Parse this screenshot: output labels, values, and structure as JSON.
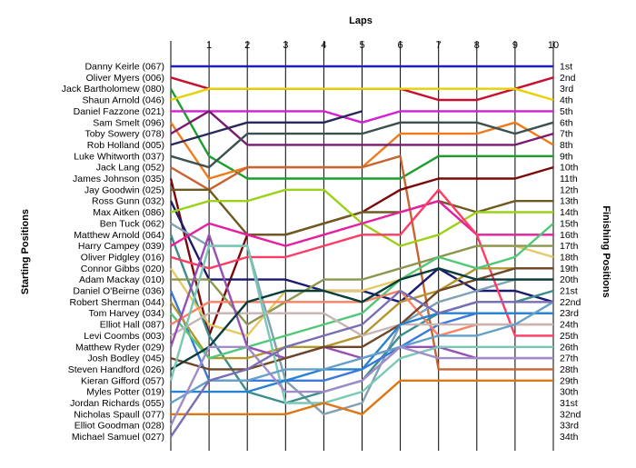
{
  "chart_data": {
    "type": "line",
    "title": "",
    "xlabel": "Laps",
    "ylabel_left": "Starting Positions",
    "ylabel_right": "Finishing Positions",
    "laps": [
      1,
      2,
      3,
      4,
      5,
      6,
      7,
      8,
      9,
      10
    ],
    "grid": "vertical",
    "finishing_positions": [
      "1st",
      "2nd",
      "3rd",
      "4th",
      "5th",
      "6th",
      "7th",
      "8th",
      "9th",
      "10th",
      "11th",
      "12th",
      "13th",
      "14th",
      "15th",
      "16th",
      "17th",
      "18th",
      "19th",
      "20th",
      "21st",
      "22nd",
      "23rd",
      "24th",
      "25th",
      "26th",
      "27th",
      "28th",
      "29th",
      "30th",
      "31st",
      "32nd",
      "33rd",
      "34th"
    ],
    "series": [
      {
        "name": "Danny Keirle (067)",
        "color": "#1f1fb4",
        "positions": [
          1,
          1,
          1,
          1,
          1,
          1,
          1,
          1,
          1,
          1,
          1
        ]
      },
      {
        "name": "Oliver Myers (006)",
        "color": "#c8102e",
        "positions": [
          2,
          3,
          3,
          3,
          3,
          3,
          3,
          4,
          4,
          3,
          2
        ]
      },
      {
        "name": "Jack Bartholomew (080)",
        "color": "#1a9e2c",
        "positions": [
          3,
          9,
          11,
          11,
          11,
          11,
          11,
          9,
          9,
          9,
          9
        ]
      },
      {
        "name": "Shaun Arnold (046)",
        "color": "#e6d200",
        "positions": [
          4,
          3,
          3,
          3,
          3,
          3,
          3,
          3,
          3,
          3,
          4
        ]
      },
      {
        "name": "Daniel Fazzone (021)",
        "color": "#d41fd4",
        "positions": [
          5,
          5,
          5,
          5,
          5,
          6,
          5,
          5,
          5,
          5,
          5
        ]
      },
      {
        "name": "Sam Smelt (096)",
        "color": "#f07a1a",
        "positions": [
          6,
          11,
          10,
          10,
          10,
          10,
          7,
          7,
          7,
          6,
          8
        ]
      },
      {
        "name": "Toby Sowery (078)",
        "color": "#7a1a6e",
        "positions": [
          7,
          5,
          8,
          8,
          8,
          8,
          8,
          8,
          8,
          8,
          7
        ]
      },
      {
        "name": "Rob Holland (005)",
        "color": "#2a2a5a",
        "positions": [
          8,
          7,
          6,
          6,
          6,
          5,
          null,
          null,
          null,
          null,
          null
        ]
      },
      {
        "name": "Luke Whitworth (037)",
        "color": "#3c5050",
        "positions": [
          9,
          10,
          7,
          7,
          7,
          7,
          6,
          6,
          6,
          7,
          6
        ]
      },
      {
        "name": "Jack Lang (052)",
        "color": "#c86432",
        "positions": [
          10,
          12,
          10,
          10,
          10,
          10,
          9,
          28,
          28,
          28,
          28
        ]
      },
      {
        "name": "James Johnson (035)",
        "color": "#7a0a0a",
        "positions": [
          11,
          25,
          16,
          16,
          15,
          14,
          12,
          11,
          11,
          11,
          10
        ]
      },
      {
        "name": "Jay Goodwin (025)",
        "color": "#6e5a20",
        "positions": [
          12,
          12,
          16,
          16,
          15,
          14,
          14,
          13,
          14,
          13,
          13
        ]
      },
      {
        "name": "Ross Gunn (032)",
        "color": "#1a1a6e",
        "positions": [
          13,
          20,
          20,
          20,
          21,
          21,
          22,
          19,
          21,
          21,
          22
        ]
      },
      {
        "name": "Max Aitken (086)",
        "color": "#9ad21a",
        "positions": [
          14,
          13,
          13,
          12,
          12,
          15,
          17,
          16,
          14,
          14,
          14
        ]
      },
      {
        "name": "Ben Tuck (062)",
        "color": "#80a0b4",
        "positions": [
          15,
          17,
          17,
          29,
          32,
          31,
          24,
          22,
          21,
          20,
          20
        ]
      },
      {
        "name": "Matthew Arnold (064)",
        "color": "#3c8c8c",
        "positions": [
          16,
          25,
          30,
          31,
          30,
          29,
          25,
          23,
          22,
          22,
          21
        ]
      },
      {
        "name": "Harry Campey (039)",
        "color": "#e61ea0",
        "positions": [
          17,
          15,
          16,
          17,
          16,
          15,
          14,
          13,
          16,
          16,
          16
        ]
      },
      {
        "name": "Oliver Pidgley (016)",
        "color": "#ff3c64",
        "positions": [
          18,
          19,
          18,
          18,
          17,
          16,
          16,
          12,
          16,
          25,
          25
        ]
      },
      {
        "name": "Connor Gibbs (020)",
        "color": "#e6c864",
        "positions": [
          19,
          24,
          25,
          21,
          21,
          21,
          20,
          18,
          17,
          17,
          18
        ]
      },
      {
        "name": "Adam Mackay (010)",
        "color": "#8c9650",
        "positions": [
          20,
          20,
          24,
          22,
          20,
          20,
          19,
          18,
          17,
          17,
          17
        ]
      },
      {
        "name": "Daniel O'Beirne (036)",
        "color": "#3c78dc",
        "positions": [
          21,
          29,
          29,
          29,
          29,
          28,
          26,
          24,
          23,
          23,
          23
        ]
      },
      {
        "name": "Robert Sherman (044)",
        "color": "#b4962d",
        "positions": [
          22,
          27,
          27,
          26,
          26,
          25,
          22,
          21,
          19,
          19,
          19
        ]
      },
      {
        "name": "Tom Harvey (034)",
        "color": "#50c878",
        "positions": [
          23,
          27,
          26,
          25,
          24,
          23,
          20,
          18,
          19,
          18,
          15
        ]
      },
      {
        "name": "Elliot Hall (087)",
        "color": "#fa8264",
        "positions": [
          24,
          22,
          22,
          22,
          22,
          22,
          21,
          25,
          24,
          24,
          24
        ]
      },
      {
        "name": "Levi Coombs (003)",
        "color": "#c8b4b4",
        "positions": [
          25,
          23,
          23,
          23,
          23,
          25,
          24,
          24,
          24,
          24,
          24
        ]
      },
      {
        "name": "Matthew Ryder (029)",
        "color": "#9650b4",
        "positions": [
          26,
          16,
          26,
          27,
          26,
          27,
          26,
          26,
          27,
          27,
          27
        ]
      },
      {
        "name": "Josh Bodley (045)",
        "color": "#6e4628",
        "positions": [
          27,
          28,
          28,
          27,
          26,
          26,
          24,
          21,
          20,
          19,
          19
        ]
      },
      {
        "name": "Steven Handford (026)",
        "color": "#0a3c3c",
        "positions": [
          28,
          26,
          22,
          21,
          21,
          22,
          20,
          19,
          20,
          20,
          20
        ]
      },
      {
        "name": "Kieran Gifford (057)",
        "color": "#78c8b4",
        "positions": [
          29,
          17,
          17,
          31,
          31,
          30,
          27,
          26,
          26,
          26,
          26
        ]
      },
      {
        "name": "Myles Potter (019)",
        "color": "#2882d2",
        "positions": [
          30,
          30,
          30,
          29,
          28,
          28,
          24,
          23,
          23,
          23,
          23
        ]
      },
      {
        "name": "Jordan Richards (055)",
        "color": "#64a0c8",
        "positions": [
          31,
          29,
          29,
          28,
          28,
          27,
          26,
          25,
          25,
          24,
          22
        ]
      },
      {
        "name": "Nicholas Spaull (077)",
        "color": "#dc7814",
        "positions": [
          32,
          32,
          32,
          32,
          31,
          32,
          29,
          29,
          29,
          29,
          29
        ]
      },
      {
        "name": "Elliot Goodman (028)",
        "color": "#a08cc8",
        "positions": [
          33,
          26,
          26,
          30,
          30,
          29,
          26,
          27,
          27,
          27,
          27
        ]
      },
      {
        "name": "Michael Samuel (027)",
        "color": "#786eb4",
        "positions": [
          34,
          29,
          28,
          26,
          25,
          24,
          21,
          23,
          22,
          22,
          22
        ]
      }
    ]
  }
}
